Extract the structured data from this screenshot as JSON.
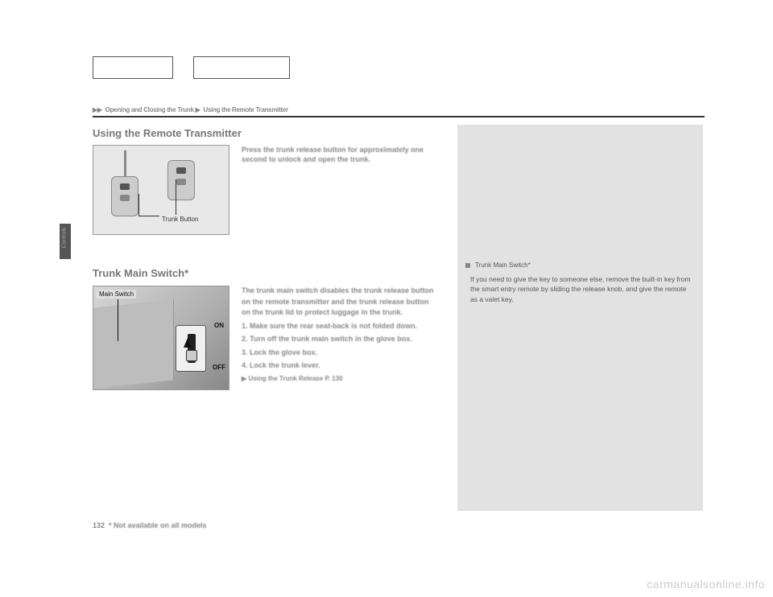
{
  "breadcrumb": {
    "section": "Opening and Closing the Trunk",
    "subsection": "Using the Remote Transmitter"
  },
  "titles": {
    "remote": "Using the Remote Transmitter",
    "mainswitch": "Trunk Main Switch*"
  },
  "remote": {
    "figure_label": "Trunk Button",
    "body": "Press the trunk release button for approximately one second to unlock and open the trunk."
  },
  "mainswitch": {
    "figure_label": "Main Switch",
    "on": "ON",
    "off": "OFF",
    "body": "The trunk main switch disables the trunk release button on the remote transmitter and the trunk release button on the trunk lid to protect luggage in the trunk.",
    "step1": "1. Make sure the rear seat-back is not folded down.",
    "step2": "2. Turn off the trunk main switch in the glove box.",
    "step3": "3. Lock the glove box.",
    "step4": "4. Lock the trunk lever.",
    "ref": "▶ Using the Trunk Release P. 130"
  },
  "sidebar": {
    "heading": "Trunk Main Switch*",
    "note": "If you need to give the key to someone else, remove the built-in key from the smart entry remote by sliding the release knob, and give the remote as a valet key."
  },
  "side_tab": "Controls",
  "footer": {
    "page": "132",
    "footnote": "* Not available on all models"
  },
  "watermark": "carmanualsonline.info",
  "colors": {
    "page_bg": "#ffffff",
    "sidebar_bg": "#e2e2e2",
    "figure_bg": "#e8e8e8",
    "text_muted": "#888888",
    "text_dark": "#333333",
    "rule": "#333333",
    "watermark": "#cccccc",
    "tab": "#555555"
  }
}
